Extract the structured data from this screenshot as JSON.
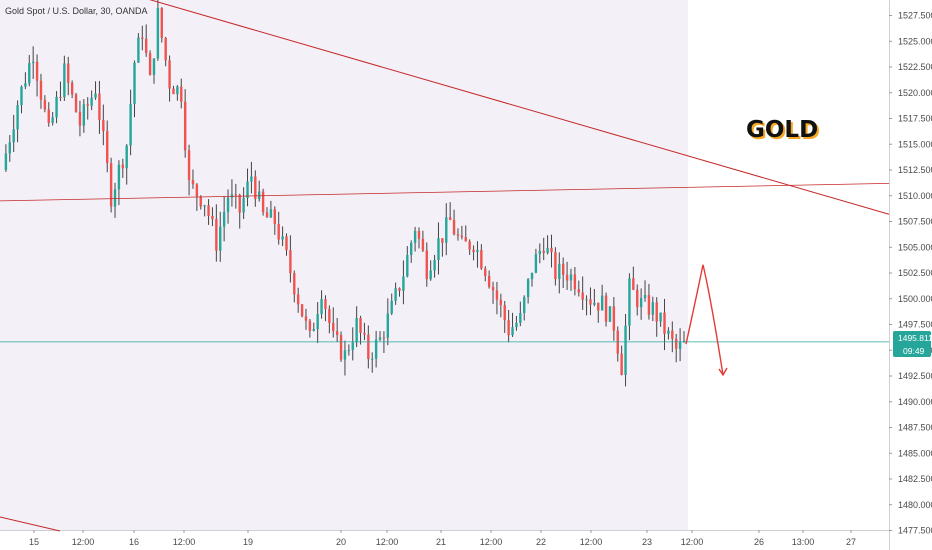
{
  "header": {
    "title": "Gold Spot / U.S. Dollar, 30, OANDA"
  },
  "annotation": {
    "text": "GOLD",
    "fill": "#111111",
    "shadow": "#f5a623"
  },
  "price_badge": {
    "price": "1495.811",
    "timer": "09:49",
    "color": "#26a69a"
  },
  "colors": {
    "up": "#26a69a",
    "down": "#ef5350",
    "wick": "#444444",
    "trendline": "#c62828",
    "hline": "#26a69a",
    "arrow": "#e53935",
    "plot_bg": "#f3f0f8",
    "future_bg": "#ffffff",
    "axis_line": "#d0d0d0"
  },
  "chart_data": {
    "type": "candlestick",
    "symbol": "Gold Spot / U.S. Dollar",
    "timeframe": "30",
    "source": "OANDA",
    "x_tick_labels": [
      "15",
      "12:00",
      "16",
      "12:00",
      "19",
      "20",
      "12:00",
      "21",
      "12:00",
      "22",
      "12:00",
      "23",
      "12:00",
      "26",
      "13:00",
      "27"
    ],
    "y_tick_labels": [
      "1527.500",
      "1525.000",
      "1522.500",
      "1520.000",
      "1517.500",
      "1515.000",
      "1512.500",
      "1510.000",
      "1507.500",
      "1505.000",
      "1502.500",
      "1500.000",
      "1497.500",
      "1495.000",
      "1492.500",
      "1490.000",
      "1487.500",
      "1485.000",
      "1482.500",
      "1480.000",
      "1477.500"
    ],
    "ylim": [
      1476.5,
      1528.5
    ],
    "last_price": 1495.811,
    "price_path": [
      [
        0,
        1512.5
      ],
      [
        4,
        1519.0
      ],
      [
        8,
        1524.0
      ],
      [
        12,
        1516.0
      ],
      [
        16,
        1522.0
      ],
      [
        20,
        1517.0
      ],
      [
        24,
        1520.5
      ],
      [
        28,
        1510.0
      ],
      [
        32,
        1515.0
      ],
      [
        34,
        1523.0
      ],
      [
        36,
        1526.0
      ],
      [
        38,
        1521.0
      ],
      [
        40,
        1527.5
      ],
      [
        43,
        1521.0
      ],
      [
        46,
        1520.0
      ],
      [
        48,
        1511.0
      ],
      [
        52,
        1509.5
      ],
      [
        55,
        1505.5
      ],
      [
        58,
        1510.0
      ],
      [
        61,
        1508.5
      ],
      [
        64,
        1512.0
      ],
      [
        67,
        1508.0
      ],
      [
        70,
        1507.5
      ],
      [
        73,
        1504.0
      ],
      [
        76,
        1500.0
      ],
      [
        79,
        1496.0
      ],
      [
        82,
        1501.0
      ],
      [
        85,
        1496.0
      ],
      [
        88,
        1494.5
      ],
      [
        91,
        1497.5
      ],
      [
        94,
        1494.5
      ],
      [
        97,
        1496.0
      ],
      [
        100,
        1499.0
      ],
      [
        103,
        1502.5
      ],
      [
        106,
        1507.0
      ],
      [
        109,
        1503.0
      ],
      [
        112,
        1505.5
      ],
      [
        115,
        1507.5
      ],
      [
        118,
        1505.0
      ],
      [
        121,
        1505.5
      ],
      [
        124,
        1503.0
      ],
      [
        127,
        1500.0
      ],
      [
        130,
        1497.0
      ],
      [
        133,
        1498.0
      ],
      [
        136,
        1503.0
      ],
      [
        139,
        1505.5
      ],
      [
        142,
        1502.5
      ],
      [
        145,
        1502.5
      ],
      [
        148,
        1501.5
      ],
      [
        151,
        1500.0
      ],
      [
        154,
        1499.5
      ],
      [
        157,
        1497.5
      ],
      [
        159,
        1493.5
      ],
      [
        161,
        1501.0
      ],
      [
        164,
        1499.5
      ],
      [
        167,
        1499.0
      ],
      [
        170,
        1497.0
      ],
      [
        173,
        1495.0
      ],
      [
        175,
        1495.5
      ]
    ],
    "trendlines": [
      {
        "name": "descending resistance",
        "from": [
          "x:0.105",
          1530.5
        ],
        "to": [
          "x:0.953",
          1508.2
        ]
      },
      {
        "name": "horizontal resistance",
        "from": [
          "x:0.0",
          1509.5
        ],
        "to": [
          "x:0.953",
          1511.2
        ]
      }
    ],
    "projection": [
      1495.6,
      1503.3,
      1492.6
    ]
  }
}
